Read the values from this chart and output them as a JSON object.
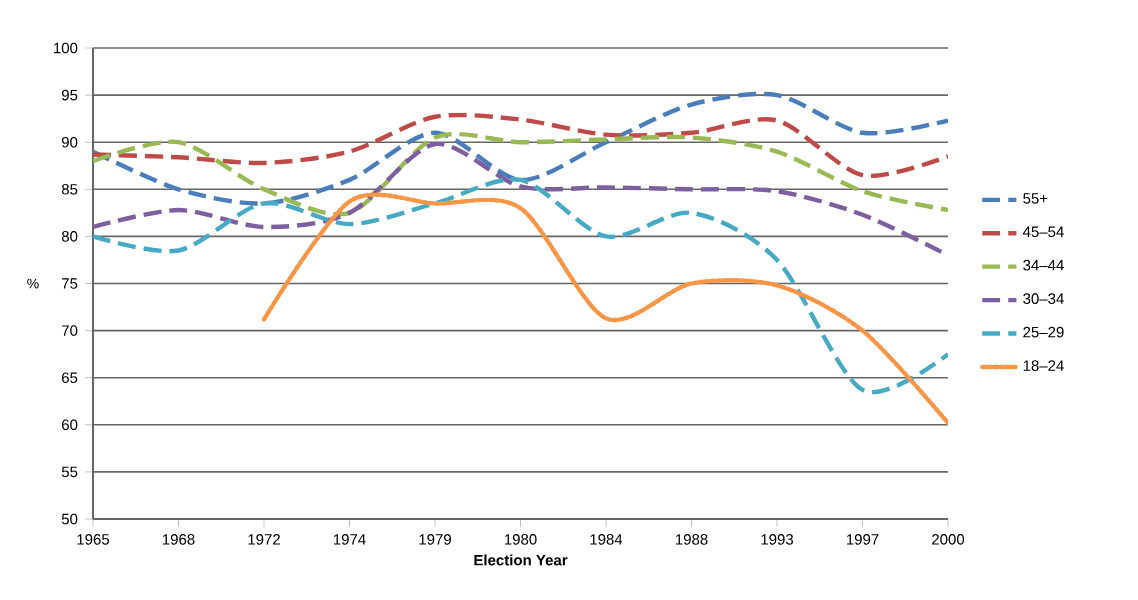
{
  "chart_data": {
    "type": "line",
    "xlabel": "Election Year",
    "ylabel": "%",
    "categories": [
      "1965",
      "1968",
      "1972",
      "1974",
      "1979",
      "1980",
      "1984",
      "1988",
      "1993",
      "1997",
      "2000"
    ],
    "series": [
      {
        "name": "55+",
        "color": "#4a7ebb",
        "line_style": "dashed",
        "values": [
          89,
          85,
          83.5,
          86,
          91,
          86,
          90,
          94,
          95,
          91,
          92.3
        ]
      },
      {
        "name": "45–54",
        "color": "#be4b48",
        "line_style": "dashed",
        "values": [
          88.7,
          88.4,
          87.8,
          89,
          92.7,
          92.4,
          90.8,
          91,
          92.3,
          86.5,
          88.5
        ]
      },
      {
        "name": "34–44",
        "color": "#98b954",
        "line_style": "dashed",
        "values": [
          88,
          90,
          85,
          82.5,
          90.5,
          90,
          90.3,
          90.5,
          89,
          84.8,
          82.8
        ]
      },
      {
        "name": "30–34",
        "color": "#7d5fa0",
        "line_style": "dashed",
        "values": [
          81,
          82.8,
          81,
          82.5,
          89.8,
          85.3,
          85.2,
          85,
          84.8,
          82.3,
          78
        ]
      },
      {
        "name": "25–29",
        "color": "#46aac5",
        "line_style": "dashed",
        "values": [
          80,
          78.5,
          83.5,
          81.3,
          83.5,
          86,
          80,
          82.5,
          77.5,
          63.7,
          67.5
        ]
      },
      {
        "name": "18–24",
        "color": "#f79646",
        "line_style": "dotted",
        "values": [
          null,
          null,
          71.2,
          83.7,
          83.5,
          83,
          71.3,
          75,
          74.8,
          70,
          60.2
        ]
      }
    ],
    "ylim": [
      50,
      100
    ],
    "yticks": [
      50,
      55,
      60,
      65,
      70,
      75,
      80,
      85,
      90,
      95,
      100
    ],
    "grid": "y",
    "legend": "right",
    "marker": "none"
  }
}
